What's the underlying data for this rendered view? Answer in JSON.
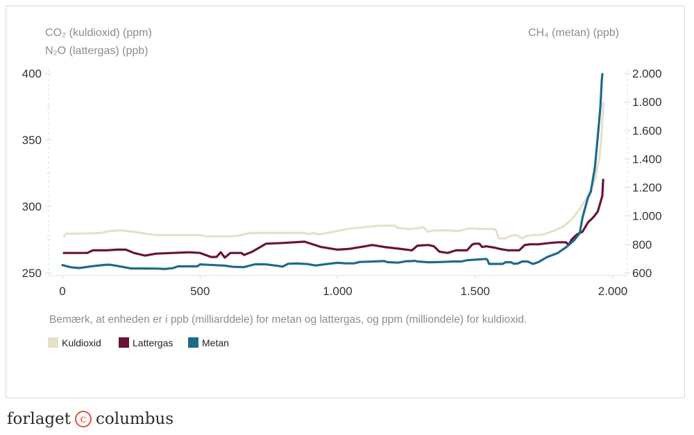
{
  "chart_data": {
    "type": "line",
    "left_axis_title_1": "CO₂ (kuldioxid) (ppm)",
    "left_axis_title_2": "N₂O (lattergas) (ppb)",
    "right_axis_title": "CH₄ (metan) (ppb)",
    "note": "Bemærk, at enheden er i ppb (milliarddele) for metan og lattergas, og ppm (milliondele) for kuldioxid.",
    "x_range": [
      0,
      2000
    ],
    "x_ticks": [
      0,
      500,
      1000,
      1500,
      2000
    ],
    "x_tick_labels": [
      "0",
      "500",
      "1.000",
      "1.500",
      "2.000"
    ],
    "y_left_range": [
      250,
      400
    ],
    "y_left_ticks": [
      250,
      300,
      350,
      400
    ],
    "y_left_tick_labels": [
      "250",
      "300",
      "350",
      "400"
    ],
    "y_right_range": [
      600,
      2000
    ],
    "y_right_ticks": [
      600,
      800,
      1000,
      1200,
      1400,
      1600,
      1800,
      2000
    ],
    "y_right_tick_labels": [
      "600",
      "800",
      "1.000",
      "1.200",
      "1.400",
      "1.600",
      "1.800",
      "2.000"
    ],
    "series": [
      {
        "name": "Kuldioxid",
        "axis": "left",
        "color": "#e7e0c9",
        "points": [
          [
            5,
            277.5
          ],
          [
            15,
            279.5
          ],
          [
            60,
            279.5
          ],
          [
            140,
            280
          ],
          [
            170,
            281.5
          ],
          [
            210,
            282
          ],
          [
            260,
            281
          ],
          [
            300,
            279.5
          ],
          [
            340,
            278.5
          ],
          [
            400,
            278.5
          ],
          [
            450,
            278.5
          ],
          [
            500,
            278.5
          ],
          [
            520,
            277.5
          ],
          [
            600,
            277.5
          ],
          [
            640,
            278
          ],
          [
            680,
            280
          ],
          [
            720,
            280
          ],
          [
            800,
            280
          ],
          [
            860,
            280
          ],
          [
            880,
            280
          ],
          [
            895,
            279
          ],
          [
            910,
            280
          ],
          [
            930,
            279
          ],
          [
            960,
            280
          ],
          [
            1000,
            281.5
          ],
          [
            1050,
            283.5
          ],
          [
            1100,
            284.5
          ],
          [
            1150,
            285.5
          ],
          [
            1210,
            285.5
          ],
          [
            1215,
            284
          ],
          [
            1260,
            283
          ],
          [
            1290,
            283.5
          ],
          [
            1310,
            284.5
          ],
          [
            1330,
            281
          ],
          [
            1350,
            282
          ],
          [
            1400,
            282
          ],
          [
            1440,
            281.5
          ],
          [
            1480,
            283.5
          ],
          [
            1520,
            283
          ],
          [
            1560,
            283
          ],
          [
            1575,
            282.5
          ],
          [
            1580,
            279
          ],
          [
            1585,
            276
          ],
          [
            1610,
            276
          ],
          [
            1630,
            278
          ],
          [
            1650,
            278.5
          ],
          [
            1670,
            276
          ],
          [
            1690,
            278
          ],
          [
            1750,
            279
          ],
          [
            1790,
            282
          ],
          [
            1820,
            285
          ],
          [
            1850,
            290
          ],
          [
            1880,
            298
          ],
          [
            1910,
            308
          ],
          [
            1935,
            320
          ],
          [
            1950,
            335
          ],
          [
            1958,
            350
          ],
          [
            1963,
            368
          ],
          [
            1966,
            378
          ]
        ]
      },
      {
        "name": "Lattergas",
        "axis": "left",
        "color": "#6b1238",
        "points": [
          [
            5,
            265
          ],
          [
            50,
            265
          ],
          [
            90,
            265
          ],
          [
            110,
            267
          ],
          [
            160,
            267
          ],
          [
            200,
            267.5
          ],
          [
            230,
            267.5
          ],
          [
            260,
            265
          ],
          [
            300,
            263
          ],
          [
            340,
            264.5
          ],
          [
            400,
            265
          ],
          [
            460,
            265.5
          ],
          [
            500,
            265
          ],
          [
            540,
            262
          ],
          [
            560,
            262
          ],
          [
            575,
            265.5
          ],
          [
            590,
            261.5
          ],
          [
            610,
            265
          ],
          [
            650,
            265
          ],
          [
            660,
            263.5
          ],
          [
            690,
            266
          ],
          [
            740,
            272
          ],
          [
            800,
            272.5
          ],
          [
            880,
            273.5
          ],
          [
            940,
            269.5
          ],
          [
            1000,
            267.5
          ],
          [
            1040,
            268
          ],
          [
            1100,
            270
          ],
          [
            1125,
            271
          ],
          [
            1170,
            269.5
          ],
          [
            1230,
            268
          ],
          [
            1270,
            267
          ],
          [
            1290,
            270.5
          ],
          [
            1330,
            271
          ],
          [
            1350,
            270
          ],
          [
            1370,
            266
          ],
          [
            1400,
            265
          ],
          [
            1430,
            267
          ],
          [
            1470,
            267
          ],
          [
            1490,
            271.5
          ],
          [
            1500,
            272
          ],
          [
            1515,
            272
          ],
          [
            1525,
            269.5
          ],
          [
            1540,
            270
          ],
          [
            1570,
            269
          ],
          [
            1590,
            268
          ],
          [
            1620,
            267
          ],
          [
            1660,
            267
          ],
          [
            1680,
            271
          ],
          [
            1700,
            271.5
          ],
          [
            1730,
            271.5
          ],
          [
            1770,
            272.5
          ],
          [
            1800,
            273
          ],
          [
            1830,
            273
          ],
          [
            1840,
            271
          ],
          [
            1850,
            275
          ],
          [
            1870,
            279
          ],
          [
            1890,
            281
          ],
          [
            1910,
            288
          ],
          [
            1930,
            292
          ],
          [
            1945,
            296
          ],
          [
            1955,
            303
          ],
          [
            1962,
            308
          ],
          [
            1965,
            320
          ]
        ]
      },
      {
        "name": "Metan",
        "axis": "right",
        "color": "#1d6a8a",
        "points": [
          [
            0,
            655
          ],
          [
            30,
            640
          ],
          [
            60,
            634
          ],
          [
            100,
            645
          ],
          [
            150,
            656
          ],
          [
            170,
            658
          ],
          [
            200,
            649
          ],
          [
            250,
            631
          ],
          [
            300,
            631
          ],
          [
            350,
            630
          ],
          [
            370,
            627
          ],
          [
            400,
            633
          ],
          [
            420,
            646
          ],
          [
            470,
            646
          ],
          [
            490,
            646
          ],
          [
            500,
            660
          ],
          [
            550,
            655
          ],
          [
            590,
            651
          ],
          [
            620,
            643
          ],
          [
            660,
            641
          ],
          [
            700,
            661
          ],
          [
            740,
            660
          ],
          [
            780,
            650
          ],
          [
            800,
            644
          ],
          [
            820,
            664
          ],
          [
            850,
            666
          ],
          [
            890,
            662
          ],
          [
            920,
            652
          ],
          [
            960,
            662
          ],
          [
            1000,
            671
          ],
          [
            1030,
            667
          ],
          [
            1060,
            667
          ],
          [
            1080,
            677
          ],
          [
            1130,
            680
          ],
          [
            1170,
            683
          ],
          [
            1180,
            676
          ],
          [
            1220,
            672
          ],
          [
            1250,
            682
          ],
          [
            1270,
            683
          ],
          [
            1280,
            685
          ],
          [
            1290,
            680
          ],
          [
            1330,
            675
          ],
          [
            1380,
            677
          ],
          [
            1420,
            680
          ],
          [
            1450,
            680
          ],
          [
            1470,
            689
          ],
          [
            1500,
            693
          ],
          [
            1520,
            696
          ],
          [
            1540,
            698
          ],
          [
            1545,
            690
          ],
          [
            1550,
            663
          ],
          [
            1575,
            663
          ],
          [
            1600,
            663
          ],
          [
            1610,
            675
          ],
          [
            1630,
            675
          ],
          [
            1640,
            664
          ],
          [
            1655,
            666
          ],
          [
            1670,
            680
          ],
          [
            1690,
            680
          ],
          [
            1710,
            663
          ],
          [
            1730,
            676
          ],
          [
            1760,
            710
          ],
          [
            1800,
            740
          ],
          [
            1830,
            780
          ],
          [
            1860,
            830
          ],
          [
            1880,
            880
          ],
          [
            1890,
            990
          ],
          [
            1900,
            1060
          ],
          [
            1910,
            1130
          ],
          [
            1920,
            1170
          ],
          [
            1935,
            1340
          ],
          [
            1945,
            1550
          ],
          [
            1955,
            1770
          ],
          [
            1960,
            1950
          ],
          [
            1962,
            1995
          ]
        ]
      }
    ],
    "legend": [
      {
        "label": "Kuldioxid",
        "color": "#e7e0c9"
      },
      {
        "label": "Lattergas",
        "color": "#6b1238"
      },
      {
        "label": "Metan",
        "color": "#1d6a8a"
      }
    ]
  },
  "footer": {
    "publisher_left": "forlaget",
    "publisher_mark": "c",
    "publisher_right": "columbus",
    "mark_color": "#e0533a"
  }
}
